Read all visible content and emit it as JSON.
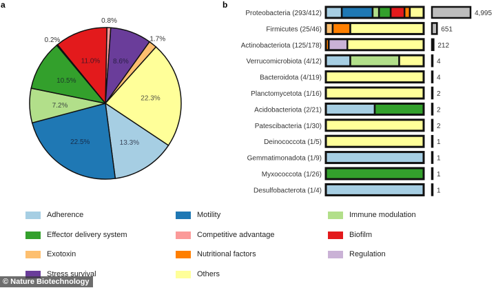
{
  "panel_labels": {
    "a": "a",
    "b": "b"
  },
  "colors": {
    "Adherence": "#a6cee3",
    "Motility": "#1f78b4",
    "Immune modulation": "#b2df8a",
    "Effector delivery system": "#33a02c",
    "Competitive advantage": "#fb9a99",
    "Biofilm": "#e31a1c",
    "Exotoxin": "#fdbf6f",
    "Nutritional factors": "#ff7f00",
    "Regulation": "#cab2d6",
    "Stress survival": "#6a3d9a",
    "Others": "#ffff99",
    "count_bar": "#bdbdbd"
  },
  "legend": [
    "Adherence",
    "Motility",
    "Immune modulation",
    "Effector delivery system",
    "Competitive advantage",
    "Biofilm",
    "Exotoxin",
    "Nutritional factors",
    "Regulation",
    "Stress survival",
    "Others"
  ],
  "watermark": "© Nature Biotechnology",
  "chart_data": [
    {
      "type": "pie",
      "panel": "a",
      "slices": [
        {
          "category": "Competitive advantage",
          "value": 0.8,
          "label": "0.8%"
        },
        {
          "category": "Stress survival",
          "value": 8.6,
          "label": "8.6%"
        },
        {
          "category": "Exotoxin",
          "value": 1.7,
          "label": "1.7%"
        },
        {
          "category": "Others",
          "value": 22.3,
          "label": "22.3%"
        },
        {
          "category": "Adherence",
          "value": 13.3,
          "label": "13.3%"
        },
        {
          "category": "Motility",
          "value": 22.5,
          "label": "22.5%"
        },
        {
          "category": "Immune modulation",
          "value": 7.2,
          "label": "7.2%"
        },
        {
          "category": "Effector delivery system",
          "value": 10.5,
          "label": "10.5%"
        },
        {
          "category": "Nutritional factors",
          "value": 0.2,
          "label": "0.2%"
        },
        {
          "category": "Biofilm",
          "value": 11.0,
          "label": "11.0%"
        }
      ]
    },
    {
      "type": "bar",
      "panel": "b",
      "stacked": true,
      "orientation": "horizontal",
      "categories": [
        "Proteobacteria (293/412)",
        "Firmicutes (25/46)",
        "Actinobacteriota (125/178)",
        "Verrucomicrobiota (4/12)",
        "Bacteroidota (4/119)",
        "Planctomycetota (1/16)",
        "Acidobacteriota  (2/21)",
        "Patescibacteria (1/30)",
        "Deinococcota (1/5)",
        "Gemmatimonadota (1/9)",
        "Myxococcota (1/26)",
        "Desulfobacterota (1/4)"
      ],
      "composition": [
        [
          [
            "Adherence",
            0.15
          ],
          [
            "Motility",
            0.29
          ],
          [
            "Immune modulation",
            0.06
          ],
          [
            "Effector delivery system",
            0.11
          ],
          [
            "Biofilm",
            0.13
          ],
          [
            "Nutritional factors",
            0.05
          ],
          [
            "Others",
            0.13
          ]
        ],
        [
          [
            "Exotoxin",
            0.07
          ],
          [
            "Nutritional factors",
            0.18
          ],
          [
            "Others",
            0.75
          ]
        ],
        [
          [
            "Nutritional factors",
            0.03
          ],
          [
            "Regulation",
            0.19
          ],
          [
            "Others",
            0.78
          ]
        ],
        [
          [
            "Adherence",
            0.25
          ],
          [
            "Immune modulation",
            0.5
          ],
          [
            "Others",
            0.25
          ]
        ],
        [
          [
            "Others",
            1
          ]
        ],
        [
          [
            "Others",
            1
          ]
        ],
        [
          [
            "Adherence",
            0.5
          ],
          [
            "Effector delivery system",
            0.5
          ]
        ],
        [
          [
            "Others",
            1
          ]
        ],
        [
          [
            "Others",
            1
          ]
        ],
        [
          [
            "Adherence",
            1
          ]
        ],
        [
          [
            "Effector delivery system",
            1
          ]
        ],
        [
          [
            "Adherence",
            1
          ]
        ]
      ],
      "counts": [
        4995,
        651,
        212,
        4,
        4,
        2,
        2,
        2,
        1,
        1,
        1,
        1
      ],
      "count_labels": [
        "4,995",
        "651",
        "212",
        "4",
        "4",
        "2",
        "2",
        "2",
        "1",
        "1",
        "1",
        "1"
      ]
    }
  ]
}
